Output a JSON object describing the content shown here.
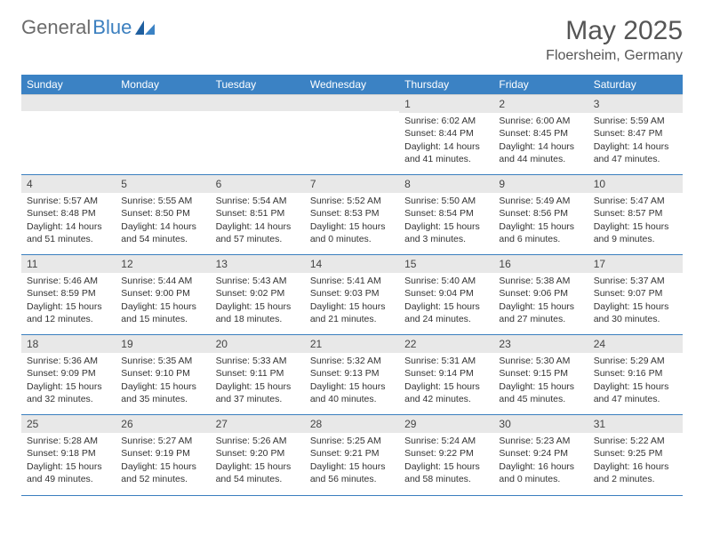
{
  "brand": {
    "part1": "General",
    "part2": "Blue"
  },
  "title": {
    "month": "May 2025",
    "location": "Floersheim, Germany"
  },
  "colors": {
    "header_bg": "#3b82c4",
    "header_text": "#ffffff",
    "rule": "#3b7fbf",
    "daynum_bg": "#e8e8e8",
    "text": "#333333",
    "brand_gray": "#6b6b6b",
    "brand_blue": "#3b7fbf"
  },
  "weekdays": [
    "Sunday",
    "Monday",
    "Tuesday",
    "Wednesday",
    "Thursday",
    "Friday",
    "Saturday"
  ],
  "weeks": [
    [
      null,
      null,
      null,
      null,
      {
        "day": "1",
        "sunrise": "Sunrise: 6:02 AM",
        "sunset": "Sunset: 8:44 PM",
        "daylight1": "Daylight: 14 hours",
        "daylight2": "and 41 minutes."
      },
      {
        "day": "2",
        "sunrise": "Sunrise: 6:00 AM",
        "sunset": "Sunset: 8:45 PM",
        "daylight1": "Daylight: 14 hours",
        "daylight2": "and 44 minutes."
      },
      {
        "day": "3",
        "sunrise": "Sunrise: 5:59 AM",
        "sunset": "Sunset: 8:47 PM",
        "daylight1": "Daylight: 14 hours",
        "daylight2": "and 47 minutes."
      }
    ],
    [
      {
        "day": "4",
        "sunrise": "Sunrise: 5:57 AM",
        "sunset": "Sunset: 8:48 PM",
        "daylight1": "Daylight: 14 hours",
        "daylight2": "and 51 minutes."
      },
      {
        "day": "5",
        "sunrise": "Sunrise: 5:55 AM",
        "sunset": "Sunset: 8:50 PM",
        "daylight1": "Daylight: 14 hours",
        "daylight2": "and 54 minutes."
      },
      {
        "day": "6",
        "sunrise": "Sunrise: 5:54 AM",
        "sunset": "Sunset: 8:51 PM",
        "daylight1": "Daylight: 14 hours",
        "daylight2": "and 57 minutes."
      },
      {
        "day": "7",
        "sunrise": "Sunrise: 5:52 AM",
        "sunset": "Sunset: 8:53 PM",
        "daylight1": "Daylight: 15 hours",
        "daylight2": "and 0 minutes."
      },
      {
        "day": "8",
        "sunrise": "Sunrise: 5:50 AM",
        "sunset": "Sunset: 8:54 PM",
        "daylight1": "Daylight: 15 hours",
        "daylight2": "and 3 minutes."
      },
      {
        "day": "9",
        "sunrise": "Sunrise: 5:49 AM",
        "sunset": "Sunset: 8:56 PM",
        "daylight1": "Daylight: 15 hours",
        "daylight2": "and 6 minutes."
      },
      {
        "day": "10",
        "sunrise": "Sunrise: 5:47 AM",
        "sunset": "Sunset: 8:57 PM",
        "daylight1": "Daylight: 15 hours",
        "daylight2": "and 9 minutes."
      }
    ],
    [
      {
        "day": "11",
        "sunrise": "Sunrise: 5:46 AM",
        "sunset": "Sunset: 8:59 PM",
        "daylight1": "Daylight: 15 hours",
        "daylight2": "and 12 minutes."
      },
      {
        "day": "12",
        "sunrise": "Sunrise: 5:44 AM",
        "sunset": "Sunset: 9:00 PM",
        "daylight1": "Daylight: 15 hours",
        "daylight2": "and 15 minutes."
      },
      {
        "day": "13",
        "sunrise": "Sunrise: 5:43 AM",
        "sunset": "Sunset: 9:02 PM",
        "daylight1": "Daylight: 15 hours",
        "daylight2": "and 18 minutes."
      },
      {
        "day": "14",
        "sunrise": "Sunrise: 5:41 AM",
        "sunset": "Sunset: 9:03 PM",
        "daylight1": "Daylight: 15 hours",
        "daylight2": "and 21 minutes."
      },
      {
        "day": "15",
        "sunrise": "Sunrise: 5:40 AM",
        "sunset": "Sunset: 9:04 PM",
        "daylight1": "Daylight: 15 hours",
        "daylight2": "and 24 minutes."
      },
      {
        "day": "16",
        "sunrise": "Sunrise: 5:38 AM",
        "sunset": "Sunset: 9:06 PM",
        "daylight1": "Daylight: 15 hours",
        "daylight2": "and 27 minutes."
      },
      {
        "day": "17",
        "sunrise": "Sunrise: 5:37 AM",
        "sunset": "Sunset: 9:07 PM",
        "daylight1": "Daylight: 15 hours",
        "daylight2": "and 30 minutes."
      }
    ],
    [
      {
        "day": "18",
        "sunrise": "Sunrise: 5:36 AM",
        "sunset": "Sunset: 9:09 PM",
        "daylight1": "Daylight: 15 hours",
        "daylight2": "and 32 minutes."
      },
      {
        "day": "19",
        "sunrise": "Sunrise: 5:35 AM",
        "sunset": "Sunset: 9:10 PM",
        "daylight1": "Daylight: 15 hours",
        "daylight2": "and 35 minutes."
      },
      {
        "day": "20",
        "sunrise": "Sunrise: 5:33 AM",
        "sunset": "Sunset: 9:11 PM",
        "daylight1": "Daylight: 15 hours",
        "daylight2": "and 37 minutes."
      },
      {
        "day": "21",
        "sunrise": "Sunrise: 5:32 AM",
        "sunset": "Sunset: 9:13 PM",
        "daylight1": "Daylight: 15 hours",
        "daylight2": "and 40 minutes."
      },
      {
        "day": "22",
        "sunrise": "Sunrise: 5:31 AM",
        "sunset": "Sunset: 9:14 PM",
        "daylight1": "Daylight: 15 hours",
        "daylight2": "and 42 minutes."
      },
      {
        "day": "23",
        "sunrise": "Sunrise: 5:30 AM",
        "sunset": "Sunset: 9:15 PM",
        "daylight1": "Daylight: 15 hours",
        "daylight2": "and 45 minutes."
      },
      {
        "day": "24",
        "sunrise": "Sunrise: 5:29 AM",
        "sunset": "Sunset: 9:16 PM",
        "daylight1": "Daylight: 15 hours",
        "daylight2": "and 47 minutes."
      }
    ],
    [
      {
        "day": "25",
        "sunrise": "Sunrise: 5:28 AM",
        "sunset": "Sunset: 9:18 PM",
        "daylight1": "Daylight: 15 hours",
        "daylight2": "and 49 minutes."
      },
      {
        "day": "26",
        "sunrise": "Sunrise: 5:27 AM",
        "sunset": "Sunset: 9:19 PM",
        "daylight1": "Daylight: 15 hours",
        "daylight2": "and 52 minutes."
      },
      {
        "day": "27",
        "sunrise": "Sunrise: 5:26 AM",
        "sunset": "Sunset: 9:20 PM",
        "daylight1": "Daylight: 15 hours",
        "daylight2": "and 54 minutes."
      },
      {
        "day": "28",
        "sunrise": "Sunrise: 5:25 AM",
        "sunset": "Sunset: 9:21 PM",
        "daylight1": "Daylight: 15 hours",
        "daylight2": "and 56 minutes."
      },
      {
        "day": "29",
        "sunrise": "Sunrise: 5:24 AM",
        "sunset": "Sunset: 9:22 PM",
        "daylight1": "Daylight: 15 hours",
        "daylight2": "and 58 minutes."
      },
      {
        "day": "30",
        "sunrise": "Sunrise: 5:23 AM",
        "sunset": "Sunset: 9:24 PM",
        "daylight1": "Daylight: 16 hours",
        "daylight2": "and 0 minutes."
      },
      {
        "day": "31",
        "sunrise": "Sunrise: 5:22 AM",
        "sunset": "Sunset: 9:25 PM",
        "daylight1": "Daylight: 16 hours",
        "daylight2": "and 2 minutes."
      }
    ]
  ]
}
